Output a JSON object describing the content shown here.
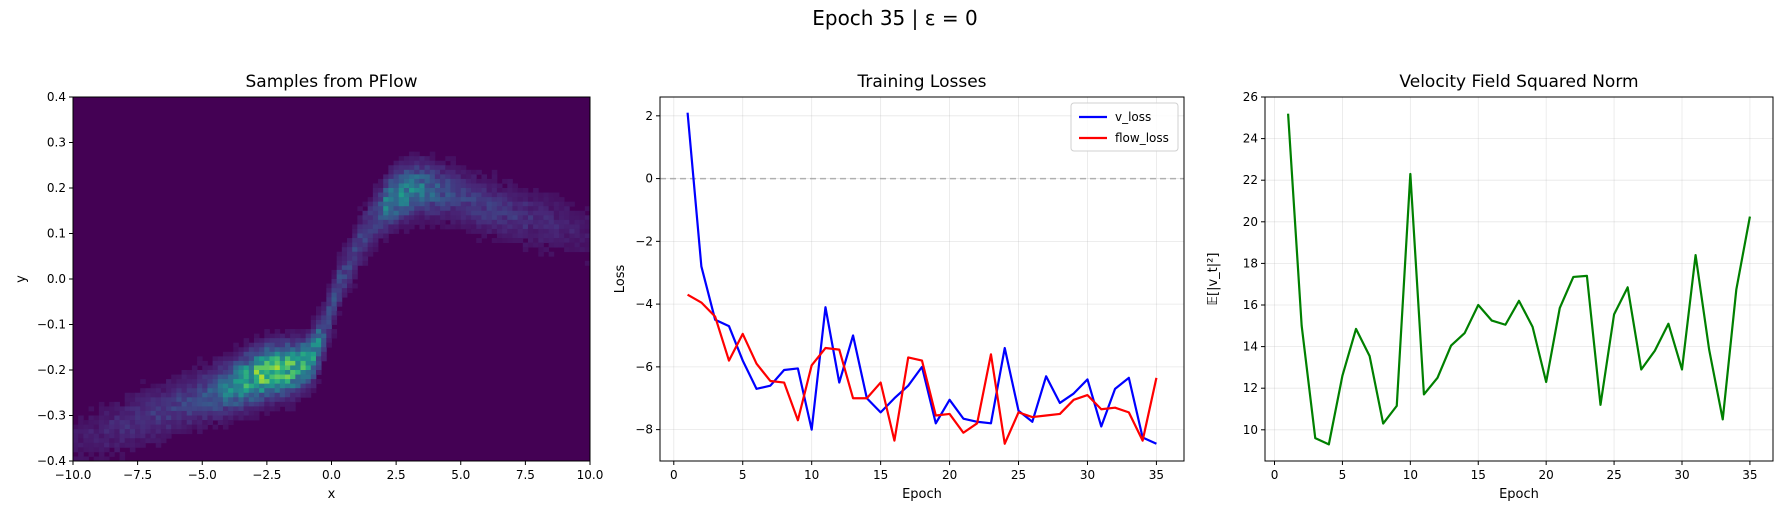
{
  "suptitle": "Epoch 35 | ε = 0",
  "chart_data": [
    {
      "type": "heatmap",
      "title": "Samples from PFlow",
      "xlabel": "x",
      "ylabel": "y",
      "xlim": [
        -10,
        10
      ],
      "ylim": [
        -0.4,
        0.4
      ],
      "xticks": [
        -10.0,
        -7.5,
        -5.0,
        -2.5,
        0.0,
        2.5,
        5.0,
        7.5,
        10.0
      ],
      "xtick_labels": [
        "−10.0",
        "−7.5",
        "−5.0",
        "−2.5",
        "0.0",
        "2.5",
        "5.0",
        "7.5",
        "10.0"
      ],
      "yticks": [
        -0.4,
        -0.3,
        -0.2,
        -0.1,
        0.0,
        0.1,
        0.2,
        0.3,
        0.4
      ],
      "ytick_labels": [
        "−0.4",
        "−0.3",
        "−0.2",
        "−0.1",
        "0.0",
        "0.1",
        "0.2",
        "0.3",
        "0.4"
      ],
      "colormap": "viridis",
      "density_ridge": {
        "x": [
          -10,
          -8,
          -6,
          -4,
          -3,
          -2.5,
          -1.5,
          -0.8,
          -0.3,
          0.3,
          1.0,
          1.6,
          2.2,
          2.8,
          3.5,
          4.5,
          6,
          8,
          10
        ],
        "y": [
          -0.36,
          -0.32,
          -0.28,
          -0.24,
          -0.215,
          -0.205,
          -0.195,
          -0.18,
          -0.12,
          -0.01,
          0.07,
          0.13,
          0.17,
          0.19,
          0.2,
          0.19,
          0.16,
          0.13,
          0.1
        ]
      }
    },
    {
      "type": "line",
      "title": "Training Losses",
      "xlabel": "Epoch",
      "ylabel": "Loss",
      "xlim": [
        -1,
        37
      ],
      "ylim": [
        -9.0,
        2.6
      ],
      "xticks": [
        0,
        5,
        10,
        15,
        20,
        25,
        30,
        35
      ],
      "yticks": [
        -8,
        -6,
        -4,
        -2,
        0,
        2
      ],
      "ytick_labels": [
        "−8",
        "−6",
        "−4",
        "−2",
        "0",
        "2"
      ],
      "grid": true,
      "hline": 0,
      "legend": "top-right",
      "x": [
        1,
        2,
        3,
        4,
        5,
        6,
        7,
        8,
        9,
        10,
        11,
        12,
        13,
        14,
        15,
        16,
        17,
        18,
        19,
        20,
        21,
        22,
        23,
        24,
        25,
        26,
        27,
        28,
        29,
        30,
        31,
        32,
        33,
        34,
        35
      ],
      "series": [
        {
          "name": "v_loss",
          "color": "#0000ff",
          "values": [
            2.1,
            -2.8,
            -4.5,
            -4.7,
            -5.8,
            -6.7,
            -6.6,
            -6.1,
            -6.05,
            -8.0,
            -4.1,
            -6.5,
            -5.0,
            -7.0,
            -7.45,
            -7.0,
            -6.6,
            -6.0,
            -7.8,
            -7.05,
            -7.65,
            -7.75,
            -7.8,
            -5.4,
            -7.4,
            -7.75,
            -6.3,
            -7.15,
            -6.85,
            -6.4,
            -7.9,
            -6.7,
            -6.35,
            -8.25,
            -8.45
          ]
        },
        {
          "name": "flow_loss",
          "color": "#ff0000",
          "values": [
            -3.7,
            -3.95,
            -4.4,
            -5.8,
            -4.95,
            -5.9,
            -6.45,
            -6.5,
            -7.7,
            -5.95,
            -5.4,
            -5.45,
            -7.0,
            -7.0,
            -6.5,
            -8.35,
            -5.7,
            -5.8,
            -7.55,
            -7.5,
            -8.1,
            -7.8,
            -5.6,
            -8.45,
            -7.45,
            -7.6,
            -7.55,
            -7.5,
            -7.05,
            -6.9,
            -7.35,
            -7.3,
            -7.45,
            -8.35,
            -6.35
          ]
        }
      ]
    },
    {
      "type": "line",
      "title": "Velocity Field Squared Norm",
      "xlabel": "Epoch",
      "ylabel": "𝔼[|v_t|²]",
      "xlim": [
        -0.7,
        36.7
      ],
      "ylim": [
        8.5,
        26
      ],
      "xticks": [
        0,
        5,
        10,
        15,
        20,
        25,
        30,
        35
      ],
      "yticks": [
        10,
        12,
        14,
        16,
        18,
        20,
        22,
        24,
        26
      ],
      "grid": true,
      "x": [
        1,
        2,
        3,
        4,
        5,
        6,
        7,
        8,
        9,
        10,
        11,
        12,
        13,
        14,
        15,
        16,
        17,
        18,
        19,
        20,
        21,
        22,
        23,
        24,
        25,
        26,
        27,
        28,
        29,
        30,
        31,
        32,
        33,
        34,
        35
      ],
      "series": [
        {
          "color": "#008000",
          "values": [
            25.2,
            15.0,
            9.6,
            9.3,
            12.6,
            14.85,
            13.55,
            10.3,
            11.15,
            22.3,
            11.7,
            12.5,
            14.05,
            14.65,
            16.0,
            15.25,
            15.05,
            16.2,
            14.95,
            12.3,
            15.85,
            17.35,
            17.4,
            11.2,
            15.55,
            16.85,
            12.9,
            13.8,
            15.1,
            12.9,
            18.4,
            13.85,
            10.5,
            16.75,
            20.25
          ]
        }
      ]
    }
  ]
}
